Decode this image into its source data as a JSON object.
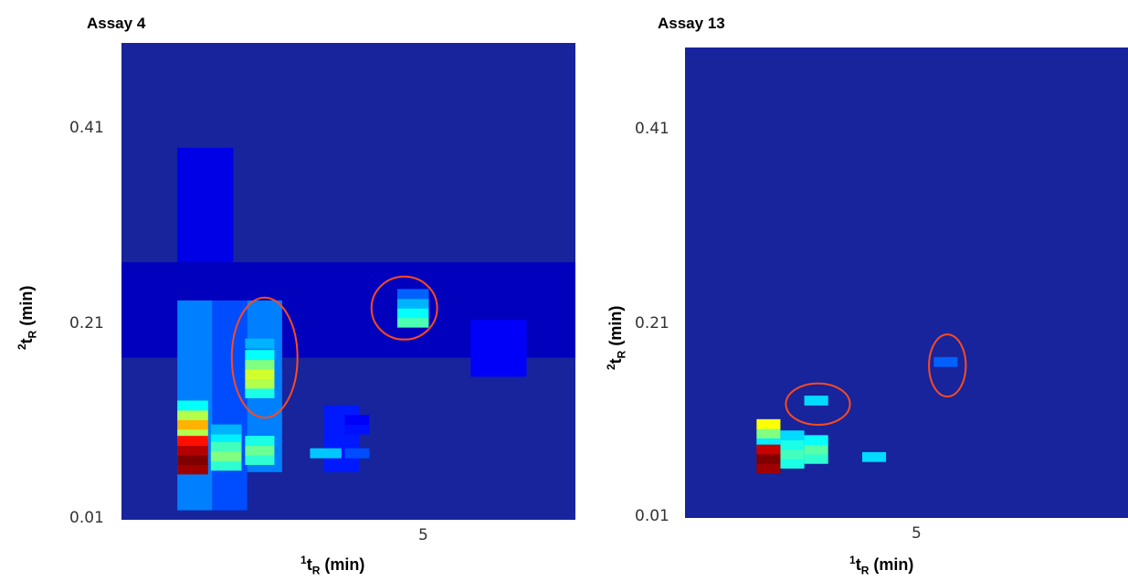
{
  "chart_data": [
    {
      "type": "heatmap",
      "title": "Assay 4",
      "xlabel": {
        "sup": "1",
        "base": "t",
        "sub": "R",
        "unit": " (min)"
      },
      "ylabel": {
        "sup": "2",
        "base": "t",
        "sub": "R",
        "unit": " (min)"
      },
      "x_ticks": [
        "5"
      ],
      "y_ticks": [
        "0.41",
        "0.21",
        "0.01"
      ],
      "xlim": [
        1.0,
        7.5
      ],
      "ylim": [
        0.01,
        0.51
      ],
      "colormap": "jet",
      "background_color": "#17249c",
      "annotation_color": "#ff4a1c",
      "regions": [
        {
          "x": 1.8,
          "y": 0.23,
          "w": 0.8,
          "h": 0.17,
          "v": 0.1
        },
        {
          "x": 1.0,
          "y": 0.18,
          "w": 6.5,
          "h": 0.1,
          "v": 0.06
        },
        {
          "x": 1.8,
          "y": 0.02,
          "w": 0.5,
          "h": 0.22,
          "v": 0.25
        },
        {
          "x": 2.3,
          "y": 0.02,
          "w": 0.5,
          "h": 0.22,
          "v": 0.2
        },
        {
          "x": 2.8,
          "y": 0.06,
          "w": 0.5,
          "h": 0.18,
          "v": 0.25
        },
        {
          "x": 3.9,
          "y": 0.06,
          "w": 0.5,
          "h": 0.07,
          "v": 0.15
        },
        {
          "x": 6.0,
          "y": 0.16,
          "w": 0.8,
          "h": 0.06,
          "v": 0.12
        }
      ],
      "peaks": [
        {
          "x": 1.8,
          "w": 0.44,
          "ys": [
            [
              0.07,
              0.3
            ],
            [
              0.095,
              0.55
            ],
            [
              0.105,
              0.7
            ],
            [
              0.115,
              0.55
            ],
            [
              0.125,
              0.38
            ]
          ]
        },
        {
          "x": 1.8,
          "w": 0.44,
          "ys": [
            [
              0.058,
              0.97
            ],
            [
              0.068,
              1.0
            ],
            [
              0.078,
              0.95
            ],
            [
              0.088,
              0.86
            ]
          ]
        },
        {
          "x": 2.28,
          "w": 0.44,
          "ys": [
            [
              0.062,
              0.42
            ],
            [
              0.072,
              0.5
            ],
            [
              0.082,
              0.44
            ],
            [
              0.092,
              0.36
            ],
            [
              0.1,
              0.3
            ]
          ]
        },
        {
          "x": 2.77,
          "w": 0.42,
          "ys": [
            [
              0.068,
              0.42
            ],
            [
              0.078,
              0.48
            ],
            [
              0.088,
              0.4
            ]
          ]
        },
        {
          "x": 2.77,
          "w": 0.42,
          "ys": [
            [
              0.138,
              0.4
            ],
            [
              0.148,
              0.55
            ],
            [
              0.158,
              0.58
            ],
            [
              0.168,
              0.5
            ],
            [
              0.178,
              0.38
            ],
            [
              0.19,
              0.3
            ]
          ]
        },
        {
          "x": 3.7,
          "w": 0.45,
          "ys": [
            [
              0.075,
              0.32
            ]
          ]
        },
        {
          "x": 4.2,
          "w": 0.35,
          "ys": [
            [
              0.075,
              0.2
            ],
            [
              0.1,
              0.14
            ],
            [
              0.11,
              0.12
            ]
          ]
        },
        {
          "x": 4.95,
          "w": 0.45,
          "ys": [
            [
              0.212,
              0.45
            ],
            [
              0.222,
              0.38
            ],
            [
              0.232,
              0.3
            ],
            [
              0.242,
              0.22
            ]
          ]
        }
      ],
      "annotations": [
        {
          "cx": 3.05,
          "cy": 0.18,
          "rx": 0.47,
          "ry": 0.063
        },
        {
          "cx": 5.05,
          "cy": 0.232,
          "rx": 0.47,
          "ry": 0.033
        }
      ]
    },
    {
      "type": "heatmap",
      "title": "Assay 13",
      "xlabel": {
        "sup": "1",
        "base": "t",
        "sub": "R",
        "unit": " (min)"
      },
      "ylabel": {
        "sup": "2",
        "base": "t",
        "sub": "R",
        "unit": " (min)"
      },
      "x_ticks": [
        "5"
      ],
      "y_ticks": [
        "0.41",
        "0.21",
        "0.01"
      ],
      "xlim": [
        1.0,
        7.5
      ],
      "ylim": [
        0.01,
        0.51
      ],
      "colormap": "jet",
      "background_color": "#17249c",
      "annotation_color": "#ff4a1c",
      "peaks": [
        {
          "x": 2.05,
          "w": 0.35,
          "ys": [
            [
              0.085,
              0.36
            ],
            [
              0.095,
              0.5
            ],
            [
              0.105,
              0.62
            ]
          ]
        },
        {
          "x": 2.05,
          "w": 0.35,
          "ys": [
            [
              0.058,
              0.97
            ],
            [
              0.068,
              1.0
            ],
            [
              0.078,
              0.93
            ]
          ]
        },
        {
          "x": 2.4,
          "w": 0.35,
          "ys": [
            [
              0.063,
              0.4
            ],
            [
              0.073,
              0.44
            ],
            [
              0.083,
              0.4
            ],
            [
              0.093,
              0.34
            ]
          ]
        },
        {
          "x": 2.75,
          "w": 0.35,
          "ys": [
            [
              0.068,
              0.42
            ],
            [
              0.078,
              0.46
            ],
            [
              0.088,
              0.38
            ]
          ]
        },
        {
          "x": 2.75,
          "w": 0.35,
          "ys": [
            [
              0.13,
              0.34
            ]
          ]
        },
        {
          "x": 3.6,
          "w": 0.35,
          "ys": [
            [
              0.07,
              0.34
            ]
          ]
        },
        {
          "x": 4.65,
          "w": 0.35,
          "ys": [
            [
              0.171,
              0.22
            ]
          ]
        }
      ],
      "annotations": [
        {
          "cx": 2.95,
          "cy": 0.131,
          "rx": 0.47,
          "ry": 0.022
        },
        {
          "cx": 4.85,
          "cy": 0.172,
          "rx": 0.27,
          "ry": 0.033
        }
      ]
    }
  ]
}
